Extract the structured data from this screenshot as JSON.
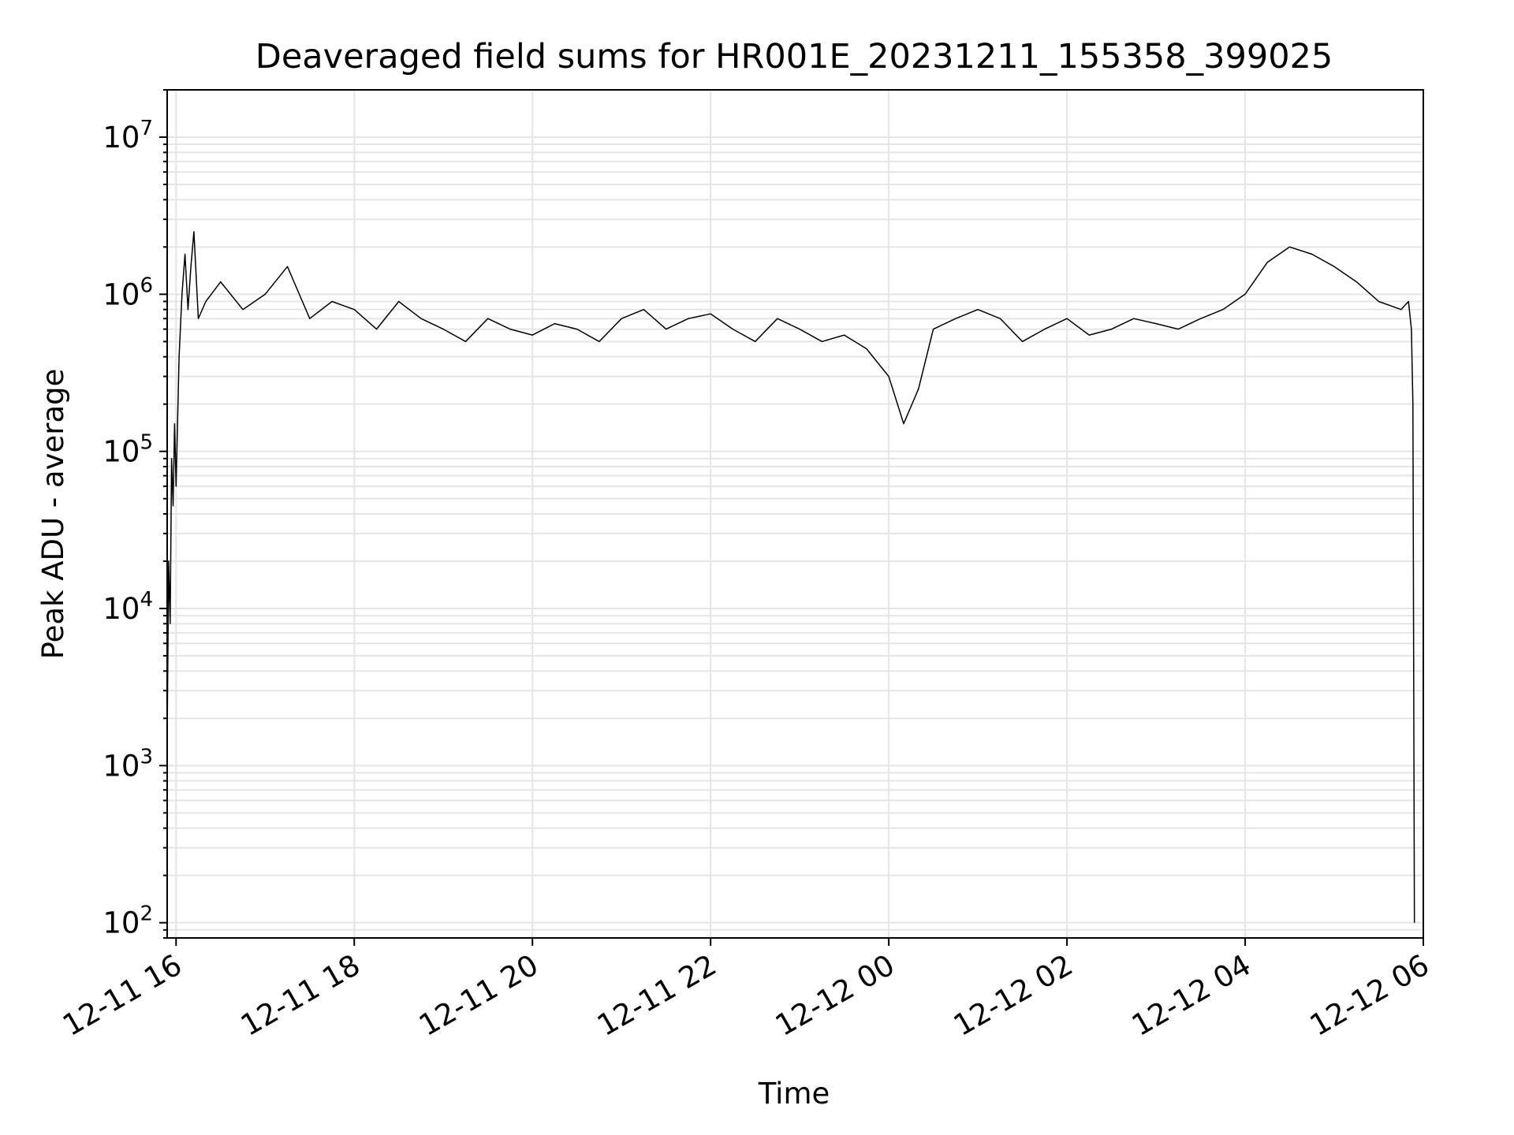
{
  "chart_data": {
    "type": "line",
    "title": "Deaveraged field sums for HR001E_20231211_155358_399025",
    "xlabel": "Time",
    "ylabel": "Peak ADU - average",
    "yscale": "log",
    "xlim": [
      "2023-12-11 15:54",
      "2023-12-12 06:00"
    ],
    "ylim": [
      80,
      20000000
    ],
    "grid": true,
    "line_color": "#000000",
    "grid_color": "#e5e5e5",
    "x_ticks": [
      {
        "value": "2023-12-11 16:00",
        "label": "12-11 16"
      },
      {
        "value": "2023-12-11 18:00",
        "label": "12-11 18"
      },
      {
        "value": "2023-12-11 20:00",
        "label": "12-11 20"
      },
      {
        "value": "2023-12-11 22:00",
        "label": "12-11 22"
      },
      {
        "value": "2023-12-12 00:00",
        "label": "12-12 00"
      },
      {
        "value": "2023-12-12 02:00",
        "label": "12-12 02"
      },
      {
        "value": "2023-12-12 04:00",
        "label": "12-12 04"
      },
      {
        "value": "2023-12-12 06:00",
        "label": "12-12 06"
      }
    ],
    "y_ticks": [
      {
        "value": 100,
        "base": "10",
        "exp": "2"
      },
      {
        "value": 1000,
        "base": "10",
        "exp": "3"
      },
      {
        "value": 10000,
        "base": "10",
        "exp": "4"
      },
      {
        "value": 100000,
        "base": "10",
        "exp": "5"
      },
      {
        "value": 1000000,
        "base": "10",
        "exp": "6"
      },
      {
        "value": 10000000,
        "base": "10",
        "exp": "7"
      }
    ],
    "series": [
      {
        "x": [
          "2023-12-11 15:54",
          "2023-12-11 15:55",
          "2023-12-11 15:56",
          "2023-12-11 15:57",
          "2023-12-11 15:58",
          "2023-12-11 15:59",
          "2023-12-11 16:00",
          "2023-12-11 16:02",
          "2023-12-11 16:04",
          "2023-12-11 16:06",
          "2023-12-11 16:08",
          "2023-12-11 16:10",
          "2023-12-11 16:12",
          "2023-12-11 16:15",
          "2023-12-11 16:20",
          "2023-12-11 16:30",
          "2023-12-11 16:45",
          "2023-12-11 17:00",
          "2023-12-11 17:15",
          "2023-12-11 17:30",
          "2023-12-11 17:45",
          "2023-12-11 18:00",
          "2023-12-11 18:15",
          "2023-12-11 18:30",
          "2023-12-11 18:45",
          "2023-12-11 19:00",
          "2023-12-11 19:15",
          "2023-12-11 19:30",
          "2023-12-11 19:45",
          "2023-12-11 20:00",
          "2023-12-11 20:15",
          "2023-12-11 20:30",
          "2023-12-11 20:45",
          "2023-12-11 21:00",
          "2023-12-11 21:15",
          "2023-12-11 21:30",
          "2023-12-11 21:45",
          "2023-12-11 22:00",
          "2023-12-11 22:15",
          "2023-12-11 22:30",
          "2023-12-11 22:45",
          "2023-12-11 23:00",
          "2023-12-11 23:15",
          "2023-12-11 23:30",
          "2023-12-11 23:45",
          "2023-12-12 00:00",
          "2023-12-12 00:10",
          "2023-12-12 00:20",
          "2023-12-12 00:30",
          "2023-12-12 00:45",
          "2023-12-12 01:00",
          "2023-12-12 01:15",
          "2023-12-12 01:30",
          "2023-12-12 01:45",
          "2023-12-12 02:00",
          "2023-12-12 02:15",
          "2023-12-12 02:30",
          "2023-12-12 02:45",
          "2023-12-12 03:00",
          "2023-12-12 03:15",
          "2023-12-12 03:30",
          "2023-12-12 03:45",
          "2023-12-12 04:00",
          "2023-12-12 04:15",
          "2023-12-12 04:30",
          "2023-12-12 04:45",
          "2023-12-12 05:00",
          "2023-12-12 05:15",
          "2023-12-12 05:30",
          "2023-12-12 05:45",
          "2023-12-12 05:50",
          "2023-12-12 05:52",
          "2023-12-12 05:53",
          "2023-12-12 05:54"
        ],
        "y": [
          1500,
          20000,
          8000,
          90000,
          45000,
          150000,
          60000,
          400000,
          1000000,
          1800000,
          800000,
          1500000,
          2500000,
          700000,
          900000,
          1200000,
          800000,
          1000000,
          1500000,
          700000,
          900000,
          800000,
          600000,
          900000,
          700000,
          600000,
          500000,
          700000,
          600000,
          550000,
          650000,
          600000,
          500000,
          700000,
          800000,
          600000,
          700000,
          750000,
          600000,
          500000,
          700000,
          600000,
          500000,
          550000,
          450000,
          300000,
          150000,
          250000,
          600000,
          700000,
          800000,
          700000,
          500000,
          600000,
          700000,
          550000,
          600000,
          700000,
          650000,
          600000,
          700000,
          800000,
          1000000,
          1600000,
          2000000,
          1800000,
          1500000,
          1200000,
          900000,
          800000,
          900000,
          600000,
          200000,
          100
        ]
      }
    ]
  }
}
